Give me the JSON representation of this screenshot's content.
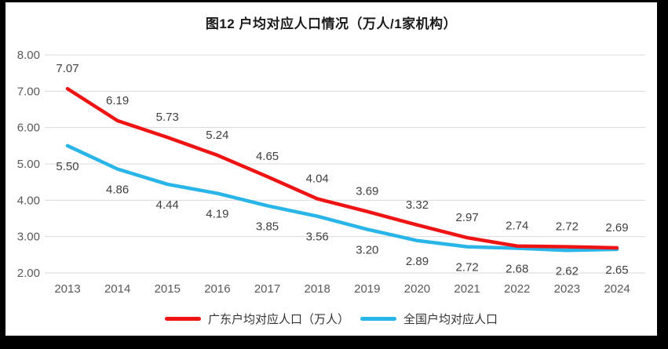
{
  "frame": {
    "background_color": "#000000",
    "panel_color": "#ffffff"
  },
  "chart_data": {
    "type": "line",
    "title": "图12 户均对应人口情况（万人/1家机构）",
    "categories": [
      "2013",
      "2014",
      "2015",
      "2016",
      "2017",
      "2018",
      "2019",
      "2020",
      "2021",
      "2022",
      "2023",
      "2024"
    ],
    "series": [
      {
        "name": "广东户均对应人口（万人）",
        "color": "#ee1414",
        "values": [
          7.07,
          6.19,
          5.73,
          5.24,
          4.65,
          4.04,
          3.69,
          3.32,
          2.97,
          2.74,
          2.72,
          2.69
        ],
        "data_labels": [
          "7.07",
          "6.19",
          "5.73",
          "5.24",
          "4.65",
          "4.04",
          "3.69",
          "3.32",
          "2.97",
          "2.74",
          "2.72",
          "2.69"
        ],
        "label_position": "above"
      },
      {
        "name": "全国户均对应人口",
        "color": "#29b5e8",
        "values": [
          5.5,
          4.86,
          4.44,
          4.19,
          3.85,
          3.56,
          3.2,
          2.89,
          2.72,
          2.68,
          2.62,
          2.65
        ],
        "data_labels": [
          "5.50",
          "4.86",
          "4.44",
          "4.19",
          "3.85",
          "3.56",
          "3.20",
          "2.89",
          "2.72",
          "2.68",
          "2.62",
          "2.65"
        ],
        "label_position": "below"
      }
    ],
    "ylim": [
      2,
      8
    ],
    "y_ticks": [
      "2.00",
      "3.00",
      "4.00",
      "5.00",
      "6.00",
      "7.00",
      "8.00"
    ],
    "xlabel": "",
    "ylabel": "",
    "grid": "horizontal",
    "legend_position": "bottom",
    "colors": {
      "gridline": "#d9d9d9",
      "axis_text": "#595959",
      "data_label_text": "#404040",
      "title_text": "#1a1a1a"
    }
  }
}
